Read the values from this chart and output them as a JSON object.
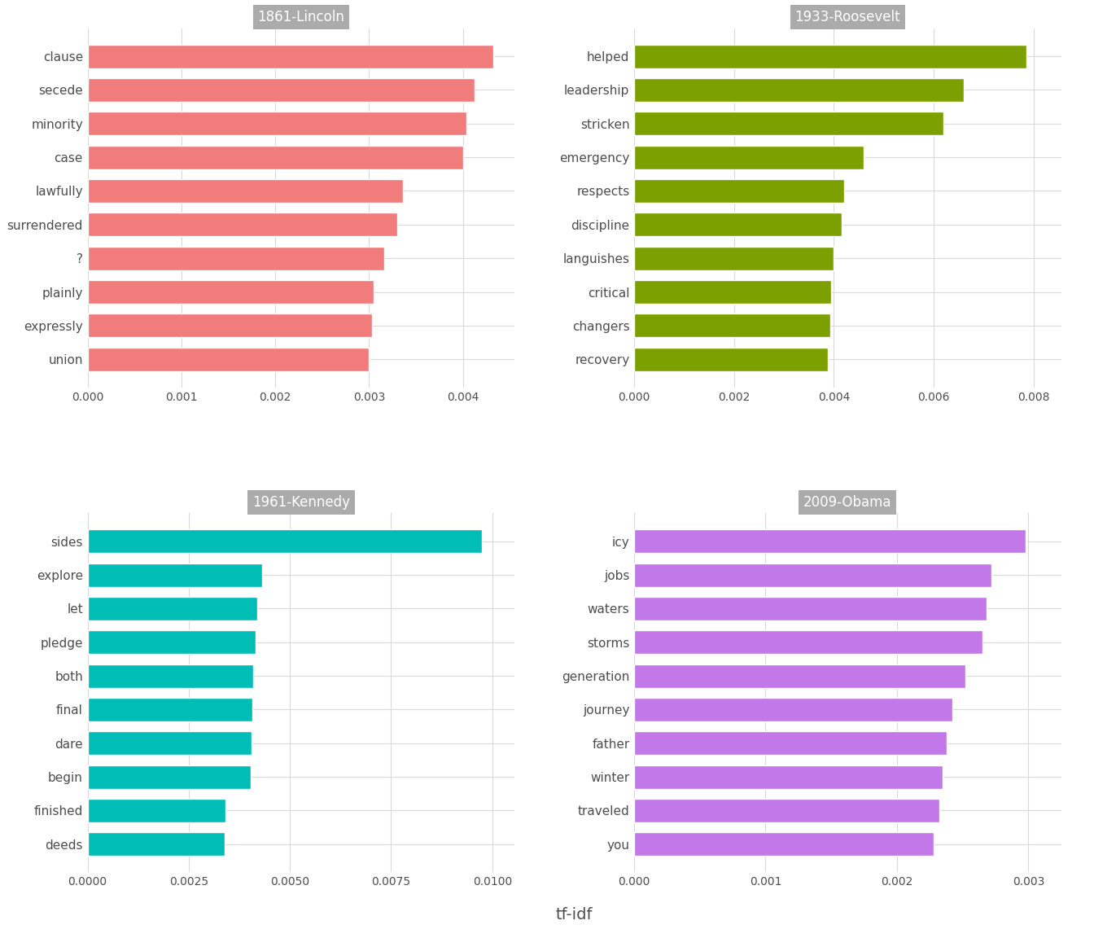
{
  "panels": [
    {
      "title": "1861-Lincoln",
      "color": "#F17C7C",
      "terms": [
        "clause",
        "secede",
        "minority",
        "case",
        "lawfully",
        "surrendered",
        "?",
        "plainly",
        "expressly",
        "union"
      ],
      "values": [
        0.00432,
        0.00412,
        0.00404,
        0.004,
        0.00336,
        0.0033,
        0.00316,
        0.00305,
        0.00303,
        0.003
      ],
      "xlim": [
        0,
        0.00455
      ],
      "xticks": [
        0.0,
        0.001,
        0.002,
        0.003,
        0.004
      ],
      "xtick_labels": [
        "0.000",
        "0.001",
        "0.002",
        "0.003",
        "0.004"
      ]
    },
    {
      "title": "1933-Roosevelt",
      "color": "#7BA000",
      "terms": [
        "helped",
        "leadership",
        "stricken",
        "emergency",
        "respects",
        "discipline",
        "languishes",
        "critical",
        "changers",
        "recovery"
      ],
      "values": [
        0.00785,
        0.0066,
        0.0062,
        0.0046,
        0.0042,
        0.00415,
        0.004,
        0.00395,
        0.00392,
        0.00388
      ],
      "xlim": [
        0,
        0.00855
      ],
      "xticks": [
        0.0,
        0.002,
        0.004,
        0.006,
        0.008
      ],
      "xtick_labels": [
        "0.000",
        "0.002",
        "0.004",
        "0.006",
        "0.008"
      ]
    },
    {
      "title": "1961-Kennedy",
      "color": "#00BDB5",
      "terms": [
        "sides",
        "explore",
        "let",
        "pledge",
        "both",
        "final",
        "dare",
        "begin",
        "finished",
        "deeds"
      ],
      "values": [
        0.00975,
        0.00432,
        0.0042,
        0.00415,
        0.0041,
        0.00408,
        0.00405,
        0.00403,
        0.0034,
        0.00338
      ],
      "xlim": [
        0,
        0.01055
      ],
      "xticks": [
        0.0,
        0.0025,
        0.005,
        0.0075,
        0.01
      ],
      "xtick_labels": [
        "0.0000",
        "0.0025",
        "0.0050",
        "0.0075",
        "0.0100"
      ]
    },
    {
      "title": "2009-Obama",
      "color": "#C278E8",
      "terms": [
        "icy",
        "jobs",
        "waters",
        "storms",
        "generation",
        "journey",
        "father",
        "winter",
        "traveled",
        "you"
      ],
      "values": [
        0.00298,
        0.00272,
        0.00268,
        0.00265,
        0.00252,
        0.00242,
        0.00238,
        0.00235,
        0.00232,
        0.00228
      ],
      "xlim": [
        0,
        0.00325
      ],
      "xticks": [
        0.0,
        0.001,
        0.002,
        0.003
      ],
      "xtick_labels": [
        "0.000",
        "0.001",
        "0.002",
        "0.003"
      ]
    }
  ],
  "background_color": "#FFFFFF",
  "panel_bg": "#FFFFFF",
  "grid_color": "#D9D9D9",
  "title_bg": "#ABABAB",
  "title_color": "#FFFFFF",
  "label_color": "#4D4D4D",
  "tick_color": "#4D4D4D",
  "bar_height": 0.7,
  "xlabel": "tf-idf",
  "xlabel_fontsize": 14,
  "title_fontsize": 12,
  "tick_fontsize": 10,
  "label_fontsize": 11
}
